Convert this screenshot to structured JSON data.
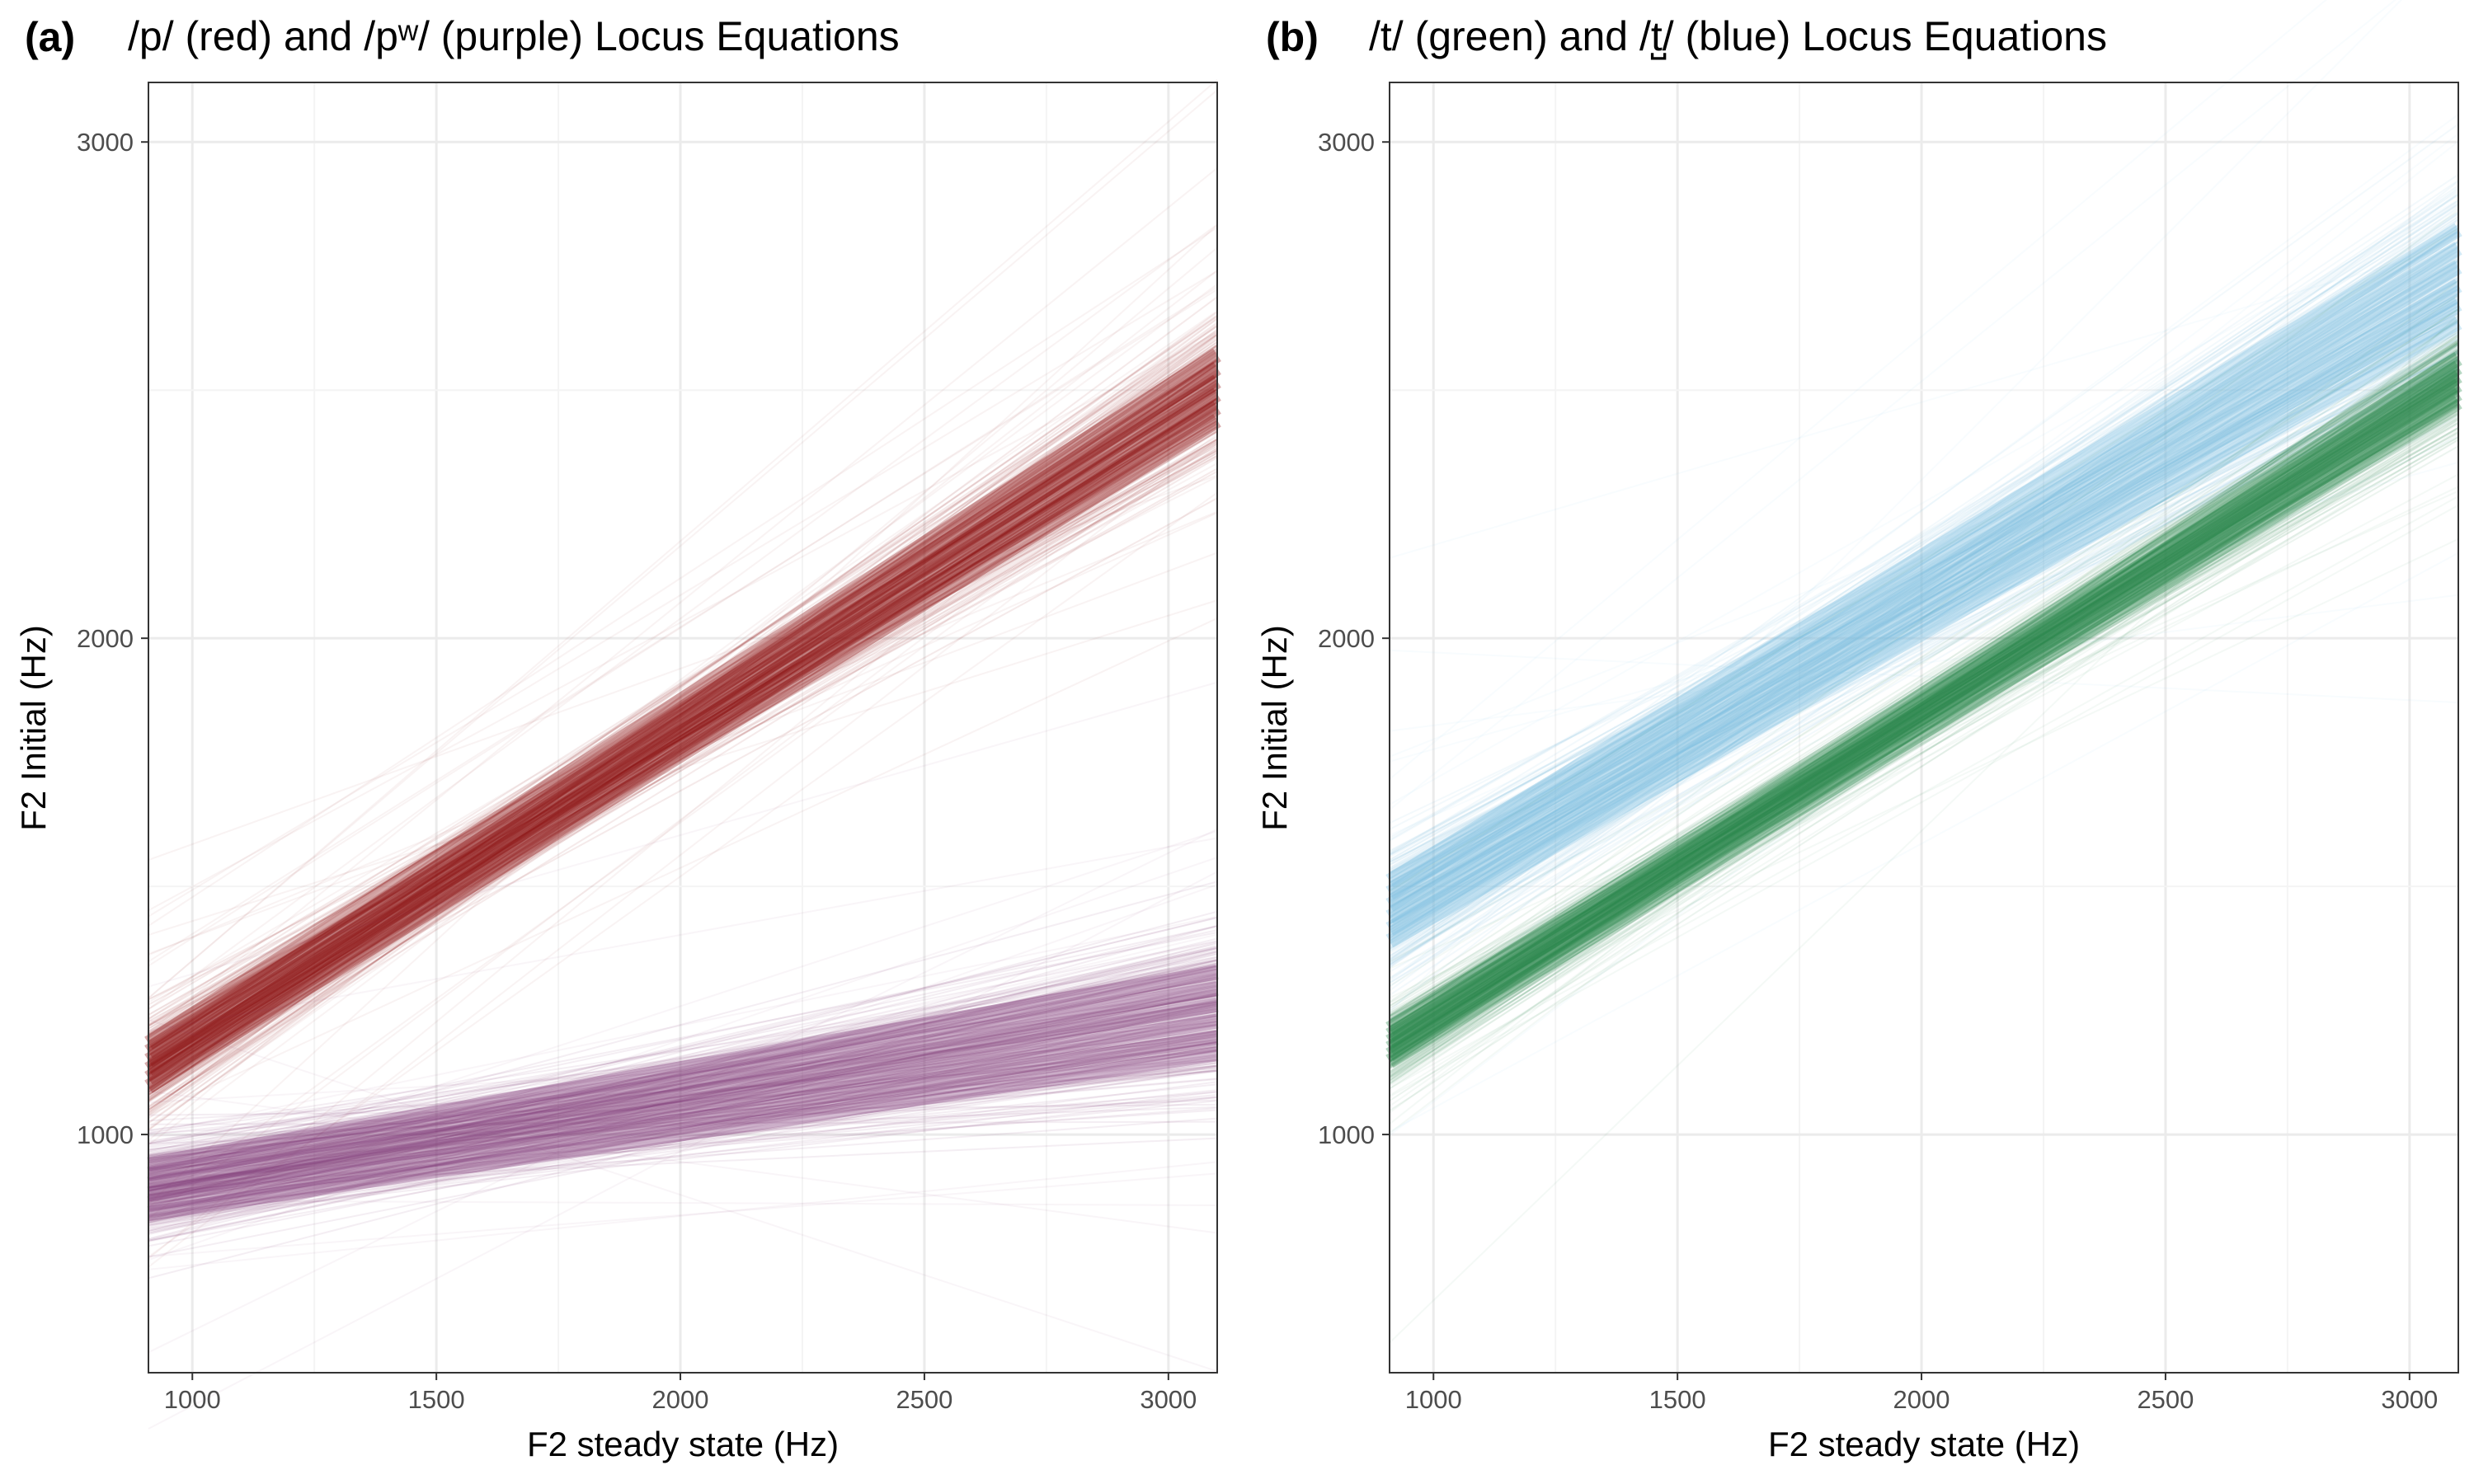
{
  "figure": {
    "colors": {
      "red": "#8b1111",
      "purple": "#84407f",
      "green": "#2a8a4e",
      "blue": "#7ec0e2",
      "grid_major": "#ebebeb",
      "grid_minor": "#f4f4f4",
      "frame": "#333333"
    }
  },
  "chart_data": [
    {
      "type": "line",
      "panel_label": "(a)",
      "title": "/p/ (red) and /pʷ/ (purple) Locus Equations",
      "xlabel": "F2 steady state (Hz)",
      "ylabel": "F2 Initial (Hz)",
      "xlim": [
        910,
        3100
      ],
      "ylim": [
        520,
        3120
      ],
      "xticks": [
        "1000",
        "1500",
        "2000",
        "2500",
        "3000"
      ],
      "yticks": [
        "1000",
        "2000",
        "3000"
      ],
      "grid": true,
      "series": [
        {
          "color_key": "red",
          "x": [
            910,
            3100
          ],
          "y": [
            1140,
            2505
          ],
          "band_halfwidth": [
            80,
            120
          ],
          "lines": 340
        },
        {
          "color_key": "purple",
          "x": [
            910,
            3100
          ],
          "y": [
            890,
            1245
          ],
          "band_halfwidth": [
            90,
            150
          ],
          "lines": 340
        }
      ]
    },
    {
      "type": "line",
      "panel_label": "(b)",
      "title": "/t/ (green) and /t̺/ (blue) Locus Equations",
      "xlabel": "F2 steady state (Hz)",
      "ylabel": "F2 Initial (Hz)",
      "xlim": [
        910,
        3100
      ],
      "ylim": [
        520,
        3120
      ],
      "xticks": [
        "1000",
        "1500",
        "2000",
        "2500",
        "3000"
      ],
      "yticks": [
        "1000",
        "2000",
        "3000"
      ],
      "grid": true,
      "series": [
        {
          "color_key": "blue",
          "x": [
            910,
            3100
          ],
          "y": [
            1450,
            2730
          ],
          "band_halfwidth": [
            110,
            170
          ],
          "lines": 340
        },
        {
          "color_key": "green",
          "x": [
            910,
            3100
          ],
          "y": [
            1180,
            2520
          ],
          "band_halfwidth": [
            60,
            80
          ],
          "lines": 340
        }
      ]
    }
  ]
}
